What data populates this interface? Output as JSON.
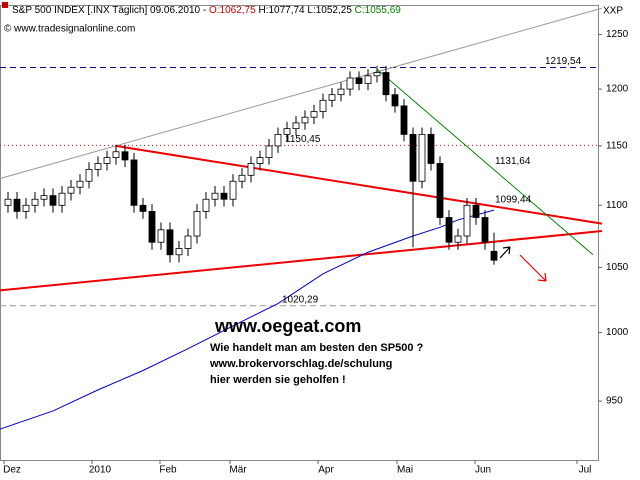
{
  "chart_data": {
    "type": "candlestick",
    "title_parts": [
      {
        "text": "S&P 500 INDEX [.INX Täglich] 09.06.2010 - ",
        "color": "#000000"
      },
      {
        "text": "O:1062,75",
        "color": "#cc0000"
      },
      {
        "text": " H:1077,74 L:1052,25 ",
        "color": "#000000"
      },
      {
        "text": "C:1055,69",
        "color": "#008800"
      }
    ],
    "source": "© www.tradesignalonline.com",
    "corner_label": "XXP",
    "log_scale": true,
    "ylim": [
      909,
      1278
    ],
    "yticks": [
      950,
      1000,
      1050,
      1100,
      1150,
      1200,
      1250
    ],
    "categories": [
      "Dez",
      "2010",
      "Feb",
      "Mär",
      "Apr",
      "Mai",
      "Jun",
      "Jul"
    ],
    "up_color": "#ffffff",
    "down_color": "#000000",
    "open": [
      1100,
      1105,
      1095,
      1100,
      1105,
      1108,
      1100,
      1110,
      1115,
      1120,
      1130,
      1135,
      1140,
      1145,
      1138,
      1100,
      1095,
      1070,
      1080,
      1060,
      1065,
      1075,
      1095,
      1105,
      1110,
      1105,
      1120,
      1125,
      1135,
      1140,
      1150,
      1160,
      1165,
      1170,
      1175,
      1180,
      1190,
      1195,
      1200,
      1210,
      1205,
      1212,
      1215,
      1195,
      1185,
      1160,
      1120,
      1160,
      1135,
      1090,
      1070,
      1075,
      1100,
      1090,
      1062.75
    ],
    "high": [
      1111,
      1111,
      1106,
      1111,
      1114,
      1114,
      1116,
      1121,
      1126,
      1136,
      1141,
      1146,
      1151,
      1151,
      1144,
      1106,
      1101,
      1086,
      1086,
      1071,
      1081,
      1101,
      1111,
      1116,
      1116,
      1126,
      1131,
      1141,
      1146,
      1156,
      1166,
      1171,
      1176,
      1181,
      1186,
      1196,
      1201,
      1206,
      1216,
      1216,
      1218,
      1221,
      1221,
      1201,
      1191,
      1166,
      1166,
      1166,
      1141,
      1096,
      1081,
      1106,
      1106,
      1096,
      1077.74
    ],
    "low": [
      1094,
      1089,
      1089,
      1094,
      1099,
      1094,
      1094,
      1104,
      1109,
      1114,
      1124,
      1129,
      1134,
      1132,
      1094,
      1089,
      1064,
      1064,
      1054,
      1054,
      1059,
      1069,
      1089,
      1099,
      1099,
      1099,
      1114,
      1119,
      1129,
      1134,
      1144,
      1154,
      1159,
      1164,
      1169,
      1174,
      1184,
      1189,
      1194,
      1199,
      1199,
      1206,
      1189,
      1179,
      1154,
      1066,
      1114,
      1129,
      1084,
      1064,
      1064,
      1069,
      1084,
      1064,
      1052.25
    ],
    "close": [
      1105,
      1095,
      1100,
      1105,
      1108,
      1100,
      1110,
      1115,
      1120,
      1130,
      1135,
      1140,
      1145,
      1138,
      1100,
      1095,
      1070,
      1080,
      1060,
      1065,
      1075,
      1095,
      1105,
      1110,
      1105,
      1120,
      1125,
      1135,
      1140,
      1150,
      1160,
      1165,
      1170,
      1175,
      1180,
      1190,
      1195,
      1200,
      1210,
      1205,
      1212,
      1215,
      1195,
      1185,
      1160,
      1120,
      1160,
      1135,
      1090,
      1070,
      1075,
      1100,
      1090,
      1070,
      1055.69
    ],
    "moving_average": {
      "color": "#0000cc",
      "x": [
        -1,
        5,
        10,
        15,
        20,
        25,
        30,
        35,
        40,
        45,
        48,
        50,
        54
      ],
      "values": [
        930,
        943,
        958,
        972,
        988,
        1005,
        1022,
        1045,
        1062,
        1075,
        1082,
        1088,
        1096
      ]
    },
    "levels": [
      {
        "value": 1219.54,
        "label": "1219,54",
        "color": "#000080",
        "dash": "6,4"
      },
      {
        "value": 1150.45,
        "label": "1150,45",
        "color": "#ff0000",
        "dash": "1,3"
      },
      {
        "value": 1020.29,
        "label": "1020,29",
        "color": "#999999",
        "dash": "6,4"
      }
    ],
    "trendlines": [
      {
        "x": [
          -1,
          66
        ],
        "values": [
          1122,
          1275
        ],
        "color": "#999999"
      },
      {
        "x": [
          12,
          66
        ],
        "values": [
          1150,
          1085
        ],
        "color": "#ee0000",
        "label": "1099,44",
        "label_value": 1099.44
      },
      {
        "x": [
          -1,
          66
        ],
        "values": [
          1032,
          1079
        ],
        "color": "#ee0000"
      },
      {
        "x": [
          41,
          65
        ],
        "values": [
          1218,
          1060
        ],
        "color": "#008800",
        "label": "1131,64",
        "label_value": 1131.64
      }
    ],
    "annotations": [
      "www.oegeat.com",
      "Wie handelt man am besten den SP500 ?",
      "www.brokervorschlag.de/schulung",
      "hier werden sie geholfen !"
    ]
  }
}
